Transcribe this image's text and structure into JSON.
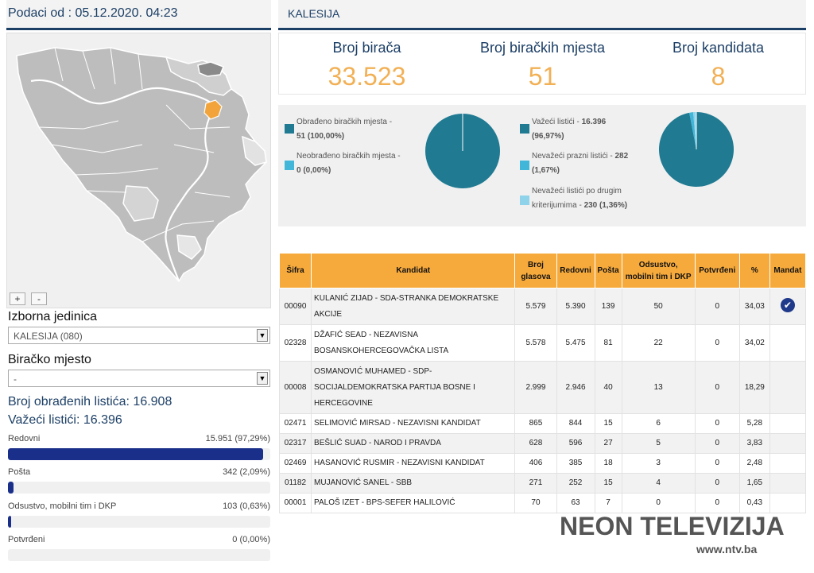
{
  "left_header": {
    "title": "Podaci od : 05.12.2020. 04:23"
  },
  "map": {
    "zoom_in": "+",
    "zoom_out": "-",
    "highlight_color": "#f2a43a",
    "base_color": "#bdbdbd"
  },
  "izborna": {
    "label": "Izborna jedinica",
    "value": "KALESIJA (080)"
  },
  "biracko": {
    "label": "Biračko mjesto",
    "value": "-"
  },
  "stats_left": {
    "obradjenih": "Broj obrađenih listića: 16.908",
    "vazeci": "Važeći listići: 16.396"
  },
  "bars": [
    {
      "label": "Redovni",
      "value": "15.951 (97,29%)",
      "fraction": 0.9729
    },
    {
      "label": "Pošta",
      "value": "342 (2,09%)",
      "fraction": 0.0209
    },
    {
      "label": "Odsustvo, mobilni tim i DKP",
      "value": "103 (0,63%)",
      "fraction": 0.0063
    },
    {
      "label": "Potvrđeni",
      "value": "0 (0,00%)",
      "fraction": 0
    }
  ],
  "right_header": {
    "title": "KALESIJA"
  },
  "stats": [
    {
      "title": "Broj birača",
      "value": "33.523"
    },
    {
      "title": "Broj biračkih mjesta",
      "value": "51"
    },
    {
      "title": "Broj kandidata",
      "value": "8"
    }
  ],
  "pie1_legend": {
    "l1a": "Obrađeno biračkih mjesta -",
    "l1b": "51 (100,00%)",
    "l2a": "Neobrađeno biračkih mjesta -",
    "l2b": "0 (0,00%)"
  },
  "pie2_legend": {
    "l1a": "Važeći listići - ",
    "l1b": "16.396",
    "l1c": "(96,97%)",
    "l2a": "Nevažeći prazni listići - ",
    "l2b": "282",
    "l2c": "(1,67%)",
    "l3a": "Nevažeći listići po drugim",
    "l3b": "kriterijumima - ",
    "l3c": "230 (1,36%)"
  },
  "pies": {
    "pie1": [
      1.0,
      0.0
    ],
    "pie2": [
      0.9697,
      0.0167,
      0.0136
    ],
    "colors": [
      "#1f7a92",
      "#41b6d8",
      "#8fd3ea"
    ]
  },
  "table": {
    "headers": [
      "Šifra",
      "Kandidat",
      "Broj glasova",
      "Redovni",
      "Pošta",
      "Odsustvo, mobilni tim i DKP",
      "Potvrđeni",
      "%",
      "Mandat"
    ],
    "rows": [
      {
        "code": "00090",
        "name": "KULANIĆ ZIJAD - SDA-STRANKA DEMOKRATSKE AKCIJE",
        "votes": "5.579",
        "regular": "5.390",
        "post": "139",
        "absent": "50",
        "confirmed": "0",
        "pct": "34,03",
        "mandate": "✔"
      },
      {
        "code": "02328",
        "name": "DŽAFIĆ SEAD - NEZAVISNA BOSANSKOHERCEGOVAČKA LISTA",
        "votes": "5.578",
        "regular": "5.475",
        "post": "81",
        "absent": "22",
        "confirmed": "0",
        "pct": "34,02",
        "mandate": ""
      },
      {
        "code": "00008",
        "name": "OSMANOVIĆ MUHAMED - SDP-SOCIJALDEMOKRATSKA PARTIJA BOSNE I HERCEGOVINE",
        "votes": "2.999",
        "regular": "2.946",
        "post": "40",
        "absent": "13",
        "confirmed": "0",
        "pct": "18,29",
        "mandate": ""
      },
      {
        "code": "02471",
        "name": "SELIMOVIĆ MIRSAD - NEZAVISNI KANDIDAT",
        "votes": "865",
        "regular": "844",
        "post": "15",
        "absent": "6",
        "confirmed": "0",
        "pct": "5,28",
        "mandate": ""
      },
      {
        "code": "02317",
        "name": "BEŠLIĆ SUAD - NAROD I PRAVDA",
        "votes": "628",
        "regular": "596",
        "post": "27",
        "absent": "5",
        "confirmed": "0",
        "pct": "3,83",
        "mandate": ""
      },
      {
        "code": "02469",
        "name": "HASANOVIĆ RUSMIR - NEZAVISNI KANDIDAT",
        "votes": "406",
        "regular": "385",
        "post": "18",
        "absent": "3",
        "confirmed": "0",
        "pct": "2,48",
        "mandate": ""
      },
      {
        "code": "01182",
        "name": "MUJANOVIĆ SANEL - SBB",
        "votes": "271",
        "regular": "252",
        "post": "15",
        "absent": "4",
        "confirmed": "0",
        "pct": "1,65",
        "mandate": ""
      },
      {
        "code": "00001",
        "name": "PALOŠ IZET - BPS-SEFER HALILOVIĆ",
        "votes": "70",
        "regular": "63",
        "post": "7",
        "absent": "0",
        "confirmed": "0",
        "pct": "0,43",
        "mandate": ""
      }
    ]
  },
  "watermark": {
    "brand": "NEON TELEVIZIJA",
    "url": "www.ntv.ba"
  }
}
